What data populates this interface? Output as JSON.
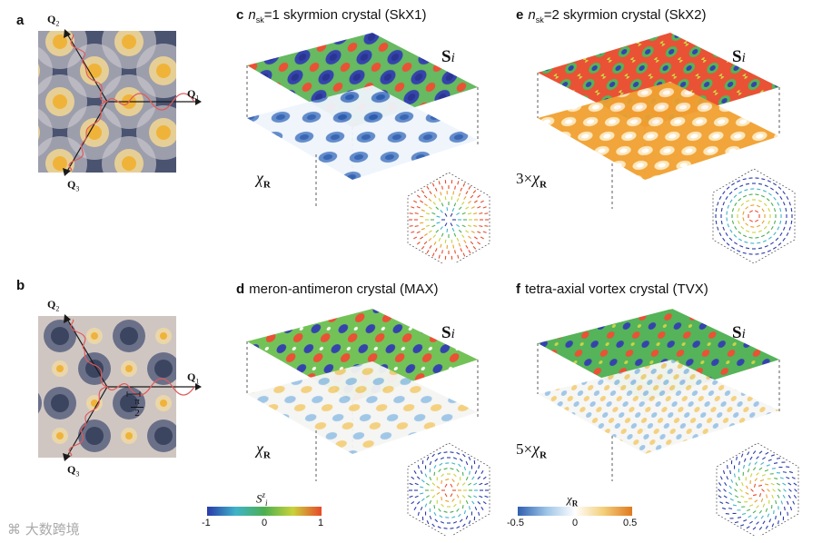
{
  "panels": {
    "a": {
      "label": "a",
      "q1": "Q",
      "q1_sub": "1",
      "q2": "Q",
      "q2_sub": "2",
      "q3": "Q",
      "q3_sub": "3"
    },
    "b": {
      "label": "b",
      "q1": "Q",
      "q1_sub": "1",
      "q2": "Q",
      "q2_sub": "2",
      "q3": "Q",
      "q3_sub": "3",
      "shift_num": "π",
      "shift_den": "2"
    },
    "c": {
      "label": "c",
      "title_prefix": "n",
      "title_sub": "sk",
      "title_rest": "=1 skyrmion crystal (SkX1)",
      "spin_label": "S",
      "spin_index": "i",
      "chi_prefix": "",
      "chi_symbol": "χ",
      "chi_sub": "R"
    },
    "e": {
      "label": "e",
      "title_prefix": "n",
      "title_sub": "sk",
      "title_rest": "=2 skyrmion crystal (SkX2)",
      "spin_label": "S",
      "spin_index": "i",
      "chi_prefix": "3×",
      "chi_symbol": "χ",
      "chi_sub": "R"
    },
    "d": {
      "label": "d",
      "title": "meron-antimeron crystal (MAX)",
      "spin_label": "S",
      "spin_index": "i",
      "chi_prefix": "",
      "chi_symbol": "χ",
      "chi_sub": "R"
    },
    "f": {
      "label": "f",
      "title": "tetra-axial vortex crystal (TVX)",
      "spin_label": "S",
      "spin_index": "i",
      "chi_prefix": "5×",
      "chi_symbol": "χ",
      "chi_sub": "R"
    }
  },
  "colorbars": {
    "spin": {
      "title": "S",
      "title_sup": "z",
      "title_sub": "i",
      "ticks": [
        "-1",
        "0",
        "1"
      ],
      "colors": [
        "#2a3aa8",
        "#3fb3c9",
        "#4caf50",
        "#c9d23a",
        "#e8492a"
      ]
    },
    "chi": {
      "title": "χ",
      "title_sub": "R",
      "ticks": [
        "-0.5",
        "0",
        "0.5"
      ],
      "colors": [
        "#2f5fb0",
        "#9cc4e6",
        "#ffffff",
        "#f3cf7a",
        "#e07a1f"
      ]
    }
  },
  "watermark": "大数跨境",
  "colors": {
    "map_dark": "#3b4560",
    "map_light": "#d9d3cf",
    "map_spot": "#f0b33a",
    "wave": "#e05a5a",
    "axis": "#1a1a1a"
  }
}
